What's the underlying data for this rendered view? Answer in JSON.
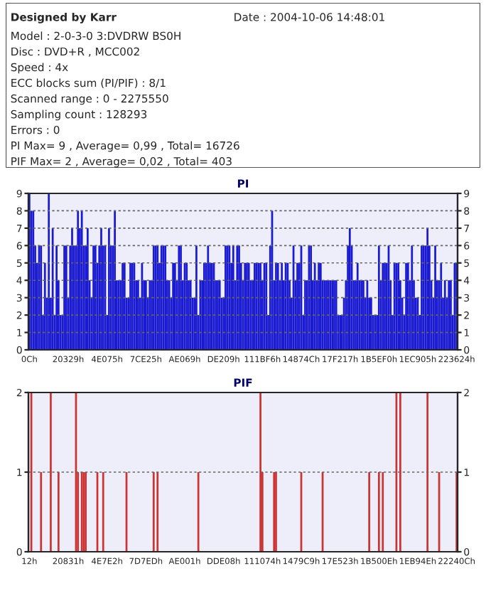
{
  "chart_data": [
    {
      "type": "other",
      "title": "Designed by Karr",
      "annotations": [
        "Date : 2004-10-06 14:48:01",
        "Model : 2-0-3-0 3:DVDRW BS0H",
        "Disc : DVD+R , MCC002",
        "Speed : 4x",
        "ECC blocks sum (PI/PIF) : 8/1",
        "Scanned range : 0 - 2275550",
        "Sampling count : 128293",
        "Errors : 0",
        "PI Max= 9 , Average= 0,99 , Total= 16726",
        "PIF Max= 2 , Average= 0,02 , Total= 403"
      ]
    },
    {
      "type": "bar",
      "title": "PI",
      "grid": "y",
      "ylim": [
        0,
        9
      ],
      "yticks": [
        0,
        1,
        2,
        3,
        4,
        5,
        6,
        7,
        8,
        9
      ],
      "y2lim": [
        0,
        9
      ],
      "y2ticks": [
        0,
        1,
        2,
        3,
        4,
        5,
        6,
        7,
        8,
        9
      ],
      "categories": [
        "0Ch",
        null,
        null,
        null,
        null,
        null,
        null,
        null,
        null,
        null,
        null,
        null,
        null,
        null,
        null,
        null,
        null,
        null,
        null,
        null,
        "20329h",
        null,
        null,
        null,
        null,
        null,
        null,
        null,
        null,
        null,
        null,
        null,
        null,
        null,
        null,
        null,
        null,
        null,
        null,
        null,
        "4E075h",
        null,
        null,
        null,
        null,
        null,
        null,
        null,
        null,
        null,
        null,
        null,
        null,
        null,
        null,
        null,
        null,
        null,
        null,
        null,
        "7CE25h",
        null,
        null,
        null,
        null,
        null,
        null,
        null,
        null,
        null,
        null,
        null,
        null,
        null,
        null,
        null,
        null,
        null,
        null,
        null,
        "AE069h",
        null,
        null,
        null,
        null,
        null,
        null,
        null,
        null,
        null,
        null,
        null,
        null,
        null,
        null,
        null,
        null,
        null,
        null,
        null,
        "DE209h",
        null,
        null,
        null,
        null,
        null,
        null,
        null,
        null,
        null,
        null,
        null,
        null,
        null,
        null,
        null,
        null,
        null,
        null,
        null,
        "111BF6h",
        null,
        null,
        null,
        null,
        null,
        null,
        null,
        null,
        null,
        null,
        null,
        null,
        null,
        null,
        null,
        null,
        null,
        null,
        null,
        "14874Ch",
        null,
        null,
        null,
        null,
        null,
        null,
        null,
        null,
        null,
        null,
        null,
        null,
        null,
        null,
        null,
        null,
        null,
        null,
        null,
        "17F217h",
        null,
        null,
        null,
        null,
        null,
        null,
        null,
        null,
        null,
        null,
        null,
        null,
        null,
        null,
        null,
        null,
        null,
        null,
        null,
        "1B5EF0h",
        null,
        null,
        null,
        null,
        null,
        null,
        null,
        null,
        null,
        null,
        null,
        null,
        null,
        null,
        null,
        null,
        null,
        null,
        null,
        "1EC905h",
        null,
        null,
        null,
        null,
        null,
        null,
        null,
        null,
        null,
        null,
        null,
        null,
        null,
        null,
        null,
        null,
        null,
        null,
        null,
        "223624h"
      ],
      "series": [
        {
          "color": "#1a1ad0",
          "values": [
            9,
            8,
            8,
            6,
            5,
            6,
            6,
            2,
            5,
            3,
            9,
            3,
            7,
            2,
            6,
            4,
            2,
            2,
            6,
            6,
            3,
            6,
            7,
            6,
            6,
            8,
            7,
            8,
            6,
            6,
            7,
            4,
            3,
            6,
            6,
            5,
            6,
            7,
            6,
            6,
            2,
            7,
            6,
            6,
            8,
            4,
            4,
            4,
            5,
            5,
            3,
            3,
            5,
            5,
            5,
            4,
            4,
            3,
            5,
            4,
            4,
            3,
            4,
            4,
            6,
            6,
            6,
            5,
            6,
            6,
            6,
            4,
            4,
            3,
            5,
            5,
            4,
            6,
            6,
            4,
            5,
            5,
            4,
            4,
            3,
            3,
            6,
            2,
            4,
            4,
            5,
            5,
            6,
            5,
            5,
            5,
            4,
            4,
            4,
            3,
            3,
            6,
            6,
            6,
            5,
            6,
            4,
            6,
            6,
            5,
            4,
            5,
            5,
            5,
            4,
            4,
            5,
            5,
            5,
            5,
            4,
            5,
            5,
            2,
            6,
            8,
            4,
            5,
            5,
            4,
            5,
            4,
            5,
            5,
            4,
            3,
            6,
            4,
            5,
            5,
            6,
            2,
            4,
            4,
            6,
            6,
            4,
            5,
            4,
            5,
            5,
            4,
            4,
            4,
            4,
            4,
            4,
            4,
            4,
            2,
            2,
            2,
            3,
            4,
            6,
            7,
            6,
            4,
            4,
            5,
            4,
            4,
            4,
            3,
            4,
            3,
            3,
            2,
            2,
            2,
            6,
            4,
            5,
            5,
            5,
            6,
            4,
            2,
            5,
            5,
            5,
            4,
            3,
            2,
            5,
            5,
            4,
            6,
            4,
            3,
            3,
            2,
            6,
            6,
            6,
            7,
            6,
            4,
            3,
            6,
            4,
            4,
            5,
            3,
            4,
            3,
            4,
            4,
            2,
            5,
            5
          ]
        }
      ]
    },
    {
      "type": "bar",
      "title": "PIF",
      "grid": "y",
      "ylim": [
        0,
        2
      ],
      "yticks": [
        0,
        1,
        2
      ],
      "y2lim": [
        0,
        2
      ],
      "y2ticks": [
        0,
        1,
        2
      ],
      "categories": [
        "12h",
        null,
        null,
        null,
        null,
        null,
        null,
        null,
        null,
        null,
        null,
        null,
        null,
        null,
        null,
        null,
        null,
        null,
        null,
        null,
        "20831h",
        null,
        null,
        null,
        null,
        null,
        null,
        null,
        null,
        null,
        null,
        null,
        null,
        null,
        null,
        null,
        null,
        null,
        null,
        null,
        "4E7E2h",
        null,
        null,
        null,
        null,
        null,
        null,
        null,
        null,
        null,
        null,
        null,
        null,
        null,
        null,
        null,
        null,
        null,
        null,
        null,
        "7D7EDh",
        null,
        null,
        null,
        null,
        null,
        null,
        null,
        null,
        null,
        null,
        null,
        null,
        null,
        null,
        null,
        null,
        null,
        null,
        null,
        "AE001h",
        null,
        null,
        null,
        null,
        null,
        null,
        null,
        null,
        null,
        null,
        null,
        null,
        null,
        null,
        null,
        null,
        null,
        null,
        null,
        "DDE08h",
        null,
        null,
        null,
        null,
        null,
        null,
        null,
        null,
        null,
        null,
        null,
        null,
        null,
        null,
        null,
        null,
        null,
        null,
        null,
        "111074h",
        null,
        null,
        null,
        null,
        null,
        null,
        null,
        null,
        null,
        null,
        null,
        null,
        null,
        null,
        null,
        null,
        null,
        null,
        null,
        "1479C9h",
        null,
        null,
        null,
        null,
        null,
        null,
        null,
        null,
        null,
        null,
        null,
        null,
        null,
        null,
        null,
        null,
        null,
        null,
        null,
        "17E523h",
        null,
        null,
        null,
        null,
        null,
        null,
        null,
        null,
        null,
        null,
        null,
        null,
        null,
        null,
        null,
        null,
        null,
        null,
        null,
        "1B500Eh",
        null,
        null,
        null,
        null,
        null,
        null,
        null,
        null,
        null,
        null,
        null,
        null,
        null,
        null,
        null,
        null,
        null,
        null,
        null,
        "1EB94Eh",
        null,
        null,
        null,
        null,
        null,
        null,
        null,
        null,
        null,
        null,
        null,
        null,
        null,
        null,
        null,
        null,
        null,
        null,
        null,
        "22240Ch"
      ],
      "series": [
        {
          "color": "#cc3333",
          "values": [
            0,
            2,
            0,
            0,
            0,
            0,
            1,
            0,
            0,
            0,
            0,
            2,
            0,
            0,
            0,
            1,
            0,
            0,
            0,
            0,
            0,
            0,
            0,
            0,
            2,
            1,
            0,
            1,
            1,
            1,
            0,
            0,
            0,
            0,
            0,
            1,
            0,
            0,
            1,
            0,
            0,
            0,
            0,
            0,
            0,
            0,
            0,
            0,
            0,
            0,
            1,
            0,
            0,
            0,
            0,
            0,
            0,
            0,
            0,
            0,
            0,
            0,
            0,
            0,
            1,
            0,
            1,
            0,
            0,
            0,
            0,
            0,
            0,
            0,
            0,
            0,
            0,
            0,
            0,
            0,
            0,
            0,
            0,
            0,
            0,
            0,
            0,
            1,
            0,
            0,
            0,
            0,
            0,
            0,
            0,
            0,
            0,
            0,
            0,
            0,
            0,
            0,
            0,
            0,
            0,
            0,
            0,
            0,
            0,
            0,
            0,
            0,
            0,
            0,
            0,
            0,
            0,
            0,
            0,
            2,
            1,
            0,
            0,
            0,
            0,
            0,
            1,
            1,
            0,
            0,
            0,
            0,
            0,
            0,
            0,
            0,
            0,
            0,
            0,
            0,
            1,
            0,
            0,
            0,
            0,
            0,
            0,
            0,
            0,
            0,
            0,
            1,
            0,
            0,
            0,
            0,
            0,
            0,
            0,
            0,
            0,
            0,
            0,
            0,
            0,
            0,
            0,
            0,
            0,
            0,
            0,
            0,
            0,
            0,
            0,
            1,
            0,
            0,
            0,
            0,
            1,
            0,
            1,
            0,
            0,
            0,
            0,
            0,
            0,
            2,
            0,
            2,
            0,
            0,
            0,
            0,
            0,
            0,
            0,
            0,
            0,
            0,
            0,
            0,
            0,
            2,
            0,
            0,
            0,
            0,
            0,
            1,
            0,
            0,
            0,
            0,
            0,
            0,
            0,
            0,
            1
          ]
        }
      ]
    }
  ]
}
